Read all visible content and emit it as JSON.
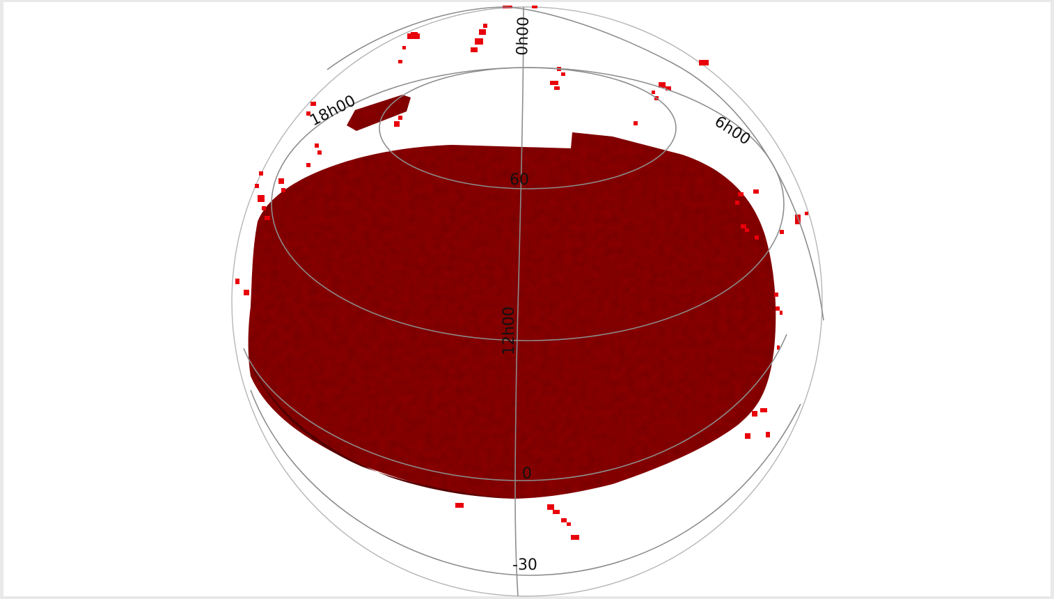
{
  "view": {
    "projection": "orthographic sphere",
    "colors": {
      "coverage": "#8a0000",
      "coverage_dark": "#5a0000",
      "outlier_patch": "#e8000b",
      "grid": "#8c8c8c",
      "background": "#ffffff"
    }
  },
  "ra_labels": [
    "0h00",
    "6h00",
    "12h00",
    "18h00"
  ],
  "dec_labels": [
    "60",
    "0",
    "-30"
  ]
}
